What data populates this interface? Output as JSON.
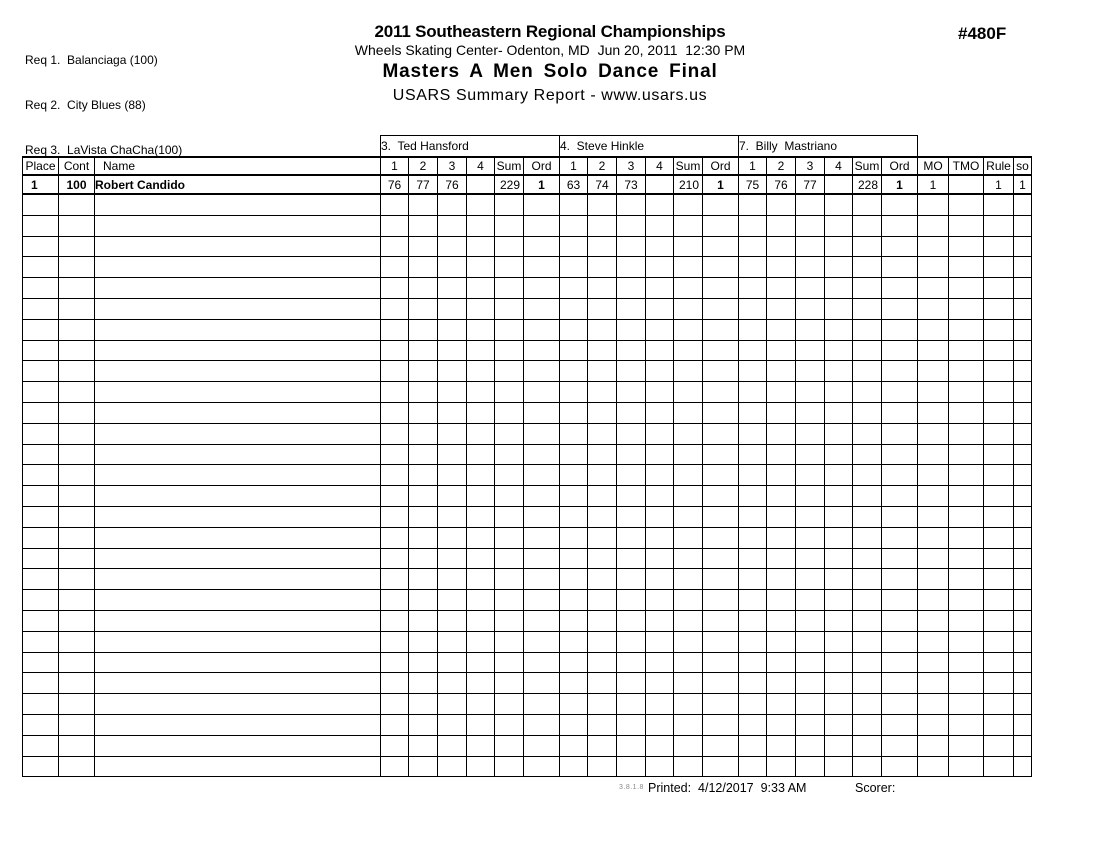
{
  "header": {
    "requirements": [
      "Req 1.  Balanciaga (100)",
      "Req 2.  City Blues (88)",
      "Req 3.  LaVista ChaCha(100)"
    ],
    "title": "2011 Southeastern Regional Championships",
    "venue_datetime": "Wheels Skating Center- Odenton, MD  Jun 20, 2011  12:30 PM",
    "event": "Masters A Men Solo Dance Final",
    "report_line": "USARS Summary Report - www.usars.us",
    "event_number": "#480F"
  },
  "table": {
    "judges": [
      "3.  Ted Hansford",
      "4.  Steve Hinkle",
      "7.  Billy  Mastriano"
    ],
    "base_columns": [
      "Place",
      "Cont",
      "Name"
    ],
    "judge_columns": [
      "1",
      "2",
      "3",
      "4",
      "Sum",
      "Ord"
    ],
    "tail_columns": [
      "MO",
      "TMO",
      "Rule",
      "so"
    ],
    "rows": [
      {
        "place": "1",
        "cont": "100",
        "name": "Robert Candido",
        "judge_scores": [
          {
            "marks": [
              "76",
              "77",
              "76",
              ""
            ],
            "sum": "229",
            "ord": "1"
          },
          {
            "marks": [
              "63",
              "74",
              "73",
              ""
            ],
            "sum": "210",
            "ord": "1"
          },
          {
            "marks": [
              "75",
              "76",
              "77",
              ""
            ],
            "sum": "228",
            "ord": "1"
          }
        ],
        "mo": "1",
        "tmo": "",
        "rule": "1",
        "so": "1"
      }
    ],
    "empty_row_count": 28
  },
  "footer": {
    "version": "3.8.1.8",
    "printed": "Printed:  4/12/2017  9:33 AM",
    "scorer_label": "Scorer:"
  }
}
